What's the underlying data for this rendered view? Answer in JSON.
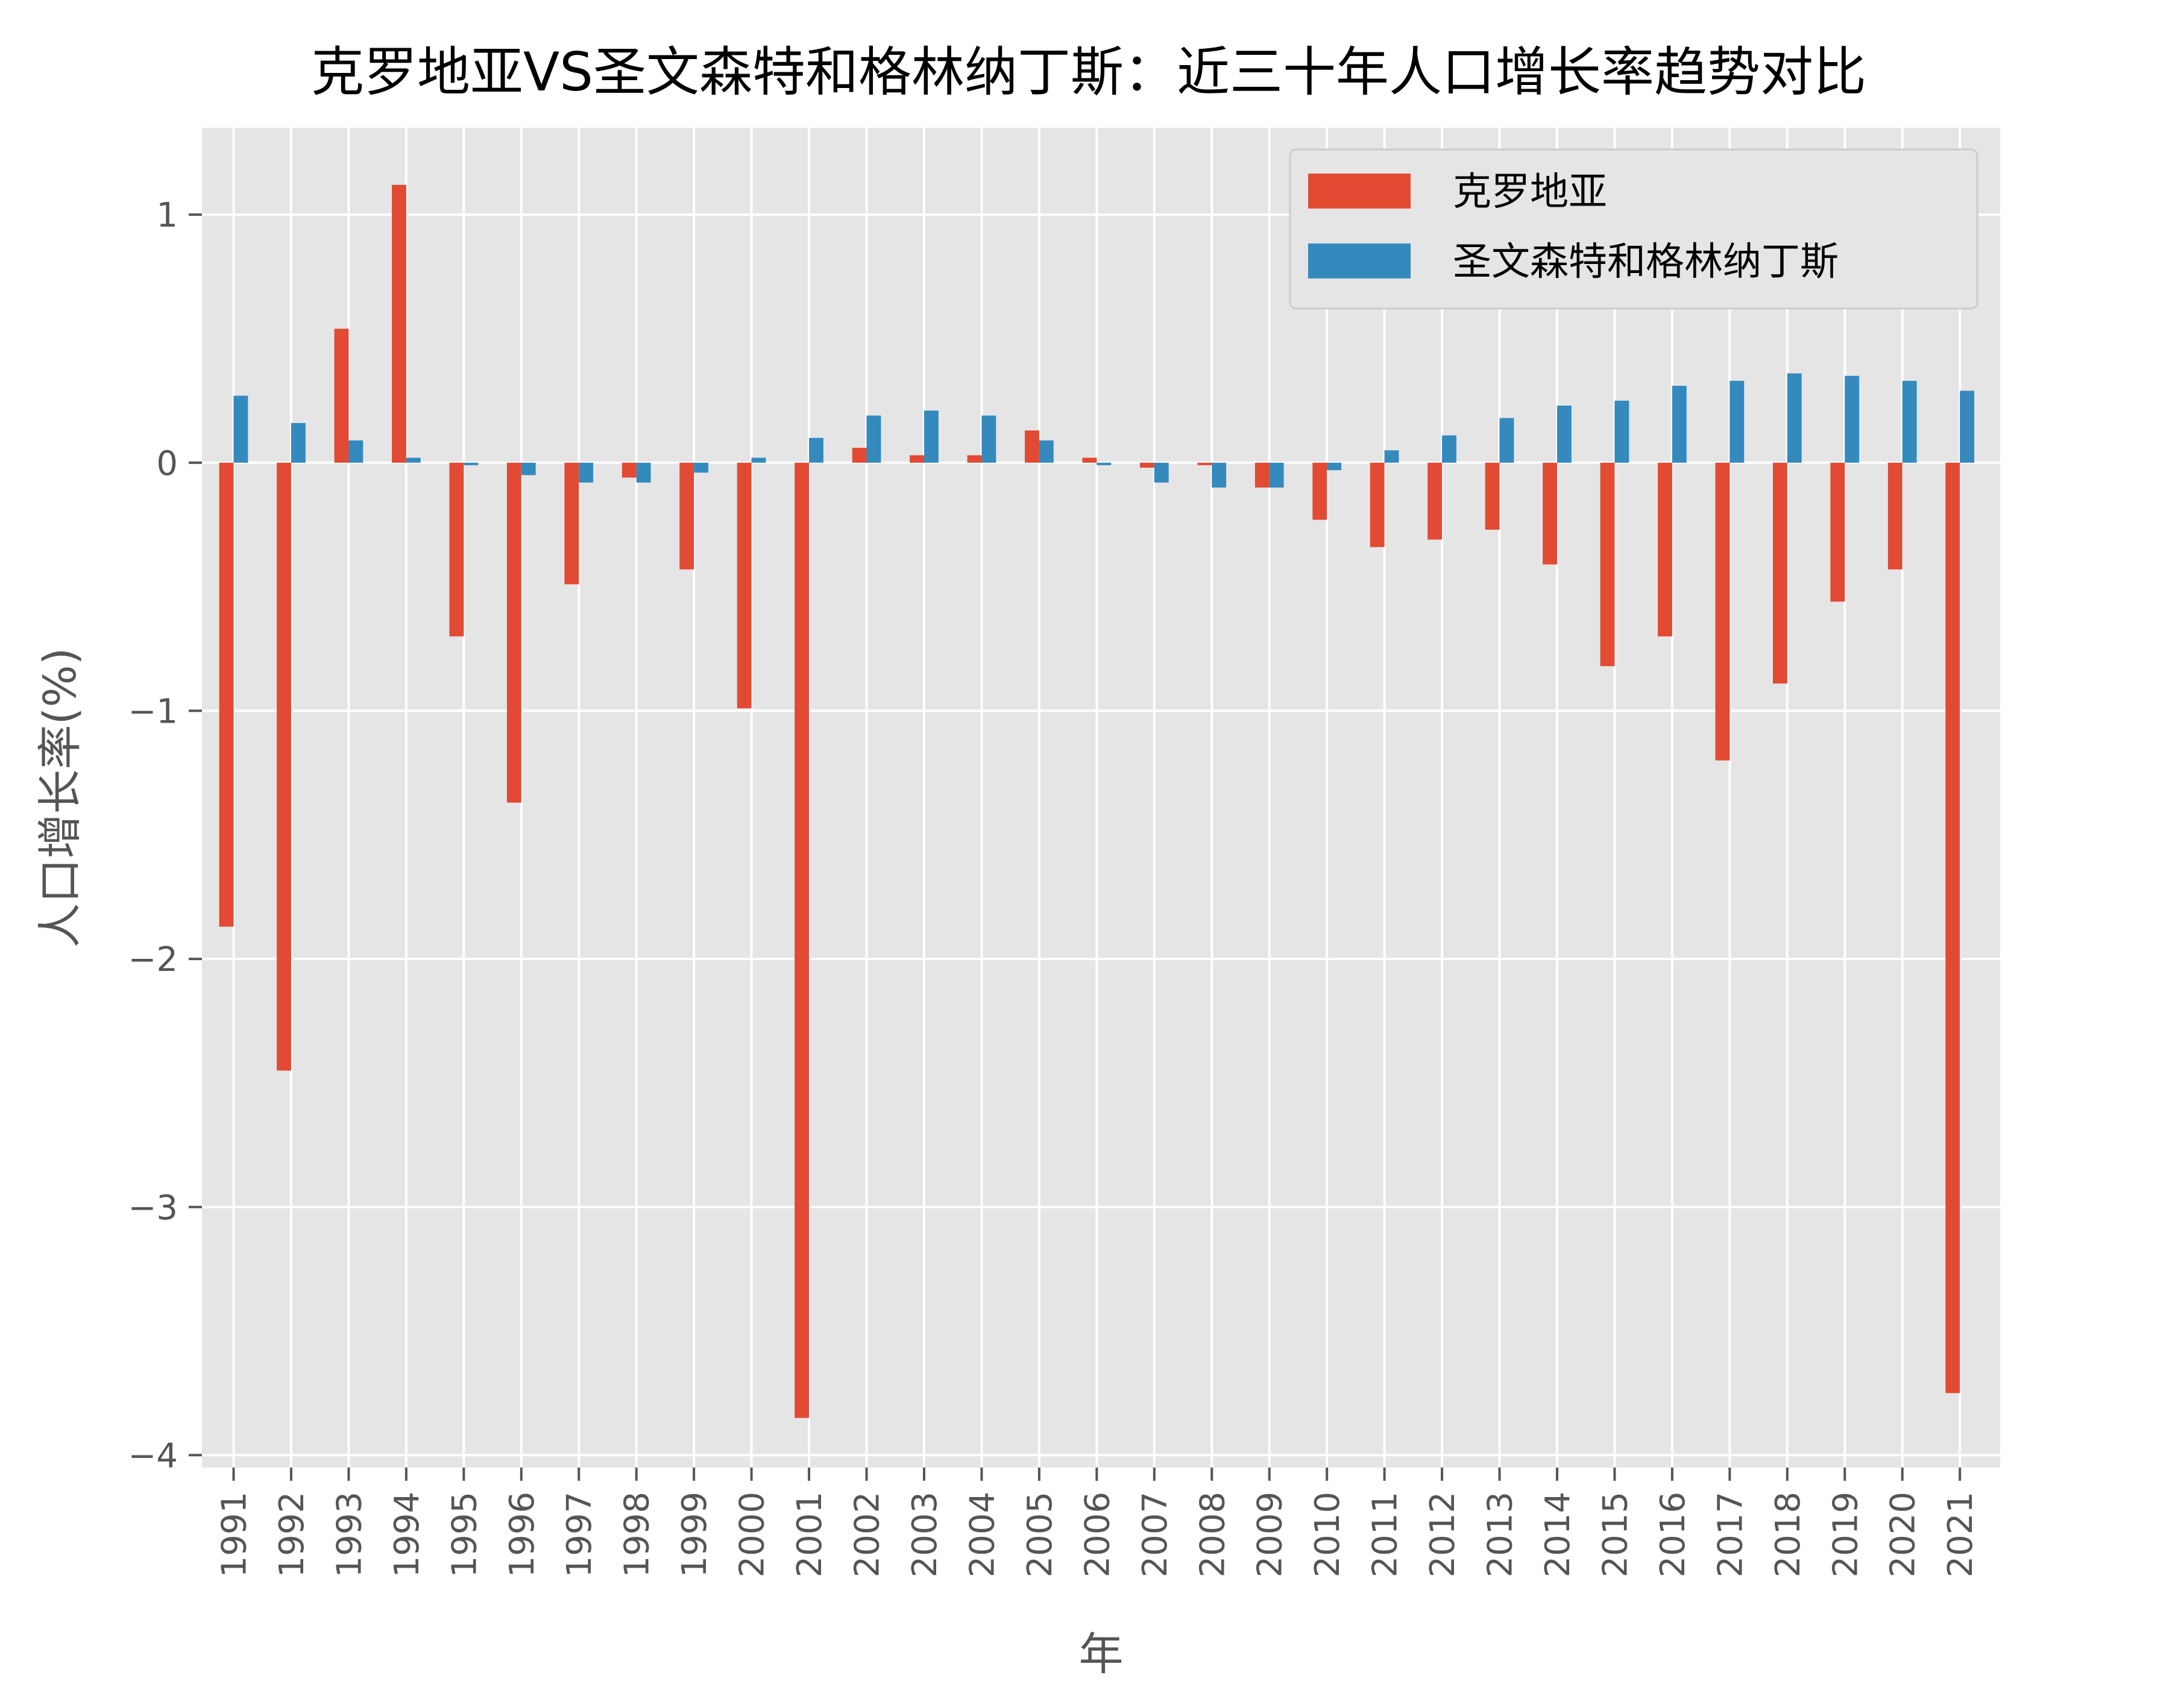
{
  "chart_data": {
    "type": "bar",
    "title": "克罗地亚VS圣文森特和格林纳丁斯：近三十年人口增长率趋势对比",
    "xlabel": "年",
    "ylabel": "人口增长率(%)",
    "ylim": [
      -4.05,
      1.35
    ],
    "yticks": [
      1,
      0,
      -1,
      -2,
      -3,
      -4
    ],
    "ytick_labels": [
      "1",
      "0",
      "−1",
      "−2",
      "−3",
      "−4"
    ],
    "grid": true,
    "legend_position": "top-right",
    "categories": [
      "1991",
      "1992",
      "1993",
      "1994",
      "1995",
      "1996",
      "1997",
      "1998",
      "1999",
      "2000",
      "2001",
      "2002",
      "2003",
      "2004",
      "2005",
      "2006",
      "2007",
      "2008",
      "2009",
      "2010",
      "2011",
      "2012",
      "2013",
      "2014",
      "2015",
      "2016",
      "2017",
      "2018",
      "2019",
      "2020",
      "2021"
    ],
    "series": [
      {
        "name": "克罗地亚",
        "color": "#e24a33",
        "values": [
          -1.87,
          -2.45,
          0.54,
          1.12,
          -0.7,
          -1.37,
          -0.49,
          -0.06,
          -0.43,
          -0.99,
          -3.85,
          0.06,
          0.03,
          0.03,
          0.13,
          0.02,
          -0.02,
          -0.01,
          -0.1,
          -0.23,
          -0.34,
          -0.31,
          -0.27,
          -0.41,
          -0.82,
          -0.7,
          -1.2,
          -0.89,
          -0.56,
          -0.43,
          -3.75
        ]
      },
      {
        "name": "圣文森特和格林纳丁斯",
        "color": "#348abd",
        "values": [
          0.27,
          0.16,
          0.09,
          0.02,
          -0.01,
          -0.05,
          -0.08,
          -0.08,
          -0.04,
          0.02,
          0.1,
          0.19,
          0.21,
          0.19,
          0.09,
          -0.01,
          -0.08,
          -0.1,
          -0.1,
          -0.03,
          0.05,
          0.11,
          0.18,
          0.23,
          0.25,
          0.31,
          0.33,
          0.36,
          0.35,
          0.33,
          0.29
        ]
      }
    ]
  }
}
